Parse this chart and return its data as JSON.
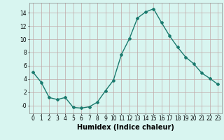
{
  "x": [
    0,
    1,
    2,
    3,
    4,
    5,
    6,
    7,
    8,
    9,
    10,
    11,
    12,
    13,
    14,
    15,
    16,
    17,
    18,
    19,
    20,
    21,
    22,
    23
  ],
  "y": [
    5.0,
    3.5,
    1.2,
    0.9,
    1.2,
    -0.3,
    -0.4,
    -0.2,
    0.5,
    2.2,
    3.8,
    7.7,
    10.1,
    13.2,
    14.1,
    14.6,
    12.5,
    10.5,
    8.8,
    7.3,
    6.3,
    4.9,
    4.1,
    3.2
  ],
  "line_color": "#1a7a6e",
  "marker": "D",
  "marker_size": 2,
  "linewidth": 1.0,
  "bg_color": "#d8f5f0",
  "grid_color": "#c0a8a8",
  "xlabel": "Humidex (Indice chaleur)",
  "xlabel_fontsize": 7,
  "xlabel_fontweight": "bold",
  "yticks": [
    0,
    2,
    4,
    6,
    8,
    10,
    12,
    14
  ],
  "ytick_labels": [
    "-0",
    "2",
    "4",
    "6",
    "8",
    "10",
    "12",
    "14"
  ],
  "xticks": [
    0,
    1,
    2,
    3,
    4,
    5,
    6,
    7,
    8,
    9,
    10,
    11,
    12,
    13,
    14,
    15,
    16,
    17,
    18,
    19,
    20,
    21,
    22,
    23
  ],
  "xlim": [
    -0.5,
    23.5
  ],
  "ylim": [
    -1.2,
    15.5
  ],
  "tick_fontsize": 5.5
}
